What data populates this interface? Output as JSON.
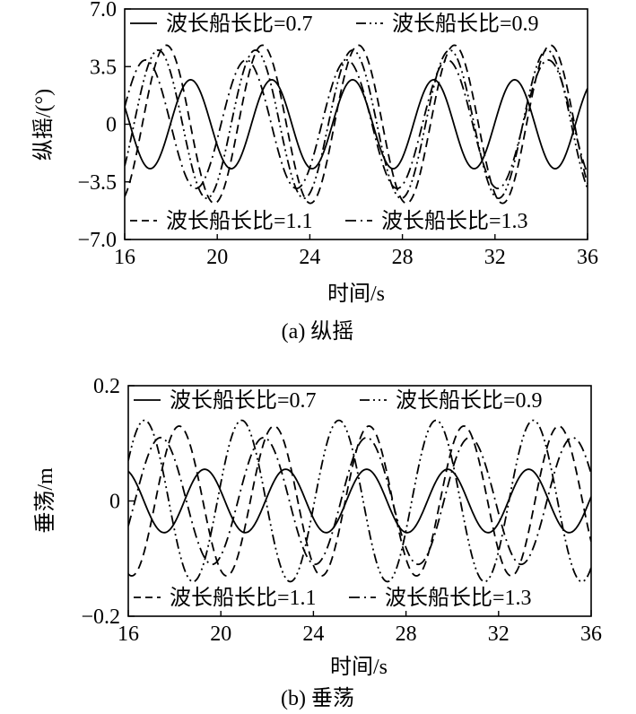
{
  "chart_data": [
    {
      "type": "line",
      "caption": "(a) 纵摇",
      "xlabel": "时间/s",
      "ylabel": "纵摇/(°)",
      "xlim": [
        16,
        36
      ],
      "ylim": [
        -7.0,
        7.0
      ],
      "xticks": [
        16,
        20,
        24,
        28,
        32,
        36
      ],
      "yticks": [
        7.0,
        3.5,
        0,
        -3.5,
        -7.0
      ],
      "yticklabels": [
        "7.0",
        "3.5",
        "0",
        "−3.5",
        "−7.0"
      ],
      "grid": false,
      "legend": [
        "top-left",
        "top-right",
        "bottom-left",
        "bottom-right"
      ],
      "series": [
        {
          "name": "波长船长比=0.7",
          "style": "solid",
          "amplitude": 2.7,
          "period": 3.5,
          "peak_t": 18.85
        },
        {
          "name": "波长船长比=0.9",
          "style": "dashdotdot",
          "amplitude": 4.5,
          "period": 4.2,
          "peak_t": 17.45
        },
        {
          "name": "波长船长比=1.1",
          "style": "dashed",
          "amplitude": 4.8,
          "period": 4.15,
          "peak_t": 21.95
        },
        {
          "name": "波长船长比=1.3",
          "style": "dashdot",
          "amplitude": 3.9,
          "period": 4.35,
          "peak_t": 16.9
        }
      ]
    },
    {
      "type": "line",
      "caption": "(b) 垂荡",
      "xlabel": "时间/s",
      "ylabel": "垂荡/m",
      "xlim": [
        16,
        36
      ],
      "ylim": [
        -0.2,
        0.2
      ],
      "xticks": [
        16,
        20,
        24,
        28,
        32,
        36
      ],
      "yticks": [
        0.2,
        0,
        -0.2
      ],
      "yticklabels": [
        "0.2",
        "0",
        "−0.2"
      ],
      "grid": false,
      "legend": [
        "top-left",
        "top-right",
        "bottom-left",
        "bottom-right"
      ],
      "series": [
        {
          "name": "波长船长比=0.7",
          "style": "solid",
          "amplitude": 0.055,
          "period": 3.5,
          "peak_t": 19.3
        },
        {
          "name": "波长船长比=0.9",
          "style": "dashdotdot",
          "amplitude": 0.14,
          "period": 4.2,
          "peak_t": 20.9
        },
        {
          "name": "波长船长比=1.1",
          "style": "dashed",
          "amplitude": 0.13,
          "period": 4.1,
          "peak_t": 18.2
        },
        {
          "name": "波长船长比=1.3",
          "style": "dashdot",
          "amplitude": 0.11,
          "period": 4.45,
          "peak_t": 17.4
        }
      ]
    }
  ]
}
